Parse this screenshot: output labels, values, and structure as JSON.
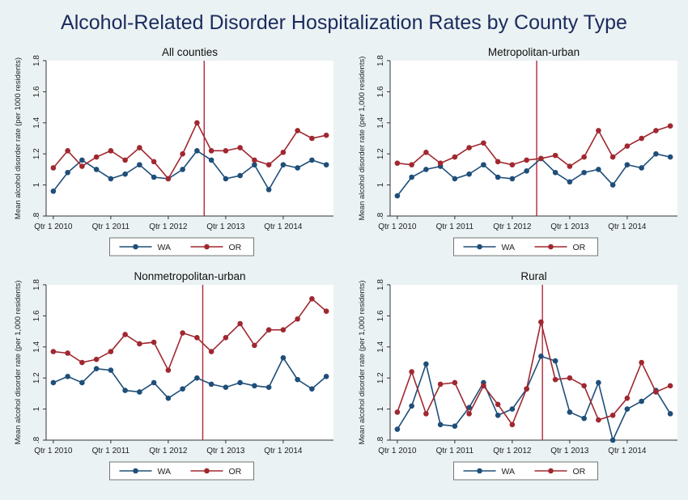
{
  "title": "Alcohol-Related Disorder Hospitalization Rates by County Type",
  "colors": {
    "WA": "#1f4e79",
    "OR": "#a02830",
    "intervention": "#b0283a",
    "background": "#eaf2f3"
  },
  "chart_data": [
    {
      "type": "line",
      "title": "All counties",
      "ylabel": "Mean alcohol disorder rate (per 1000 residents)",
      "ylim": [
        0.8,
        1.8
      ],
      "yticks": [
        0.8,
        1.0,
        1.2,
        1.4,
        1.6,
        1.8
      ],
      "ytick_labels": [
        ".8",
        "1",
        "1.2",
        "1.4",
        "1.6",
        "1.8"
      ],
      "x": [
        1,
        2,
        3,
        4,
        5,
        6,
        7,
        8,
        9,
        10,
        11,
        12,
        13,
        14,
        15,
        16,
        17,
        18,
        19,
        20
      ],
      "xticks": [
        1,
        5,
        9,
        13,
        17
      ],
      "xtick_labels": [
        "Qtr 1 2010",
        "Qtr 1 2011",
        "Qtr 1 2012",
        "Qtr 1 2013",
        "Qtr 1 2014"
      ],
      "vline": 11.5,
      "legend": "bottom-center",
      "series": [
        {
          "name": "WA",
          "values": [
            0.96,
            1.08,
            1.16,
            1.1,
            1.04,
            1.07,
            1.13,
            1.05,
            1.04,
            1.1,
            1.22,
            1.16,
            1.04,
            1.06,
            1.13,
            0.97,
            1.13,
            1.11,
            1.16,
            1.13
          ]
        },
        {
          "name": "OR",
          "values": [
            1.11,
            1.22,
            1.12,
            1.18,
            1.22,
            1.16,
            1.24,
            1.15,
            1.04,
            1.2,
            1.4,
            1.22,
            1.22,
            1.24,
            1.16,
            1.13,
            1.21,
            1.35,
            1.3,
            1.32
          ]
        }
      ]
    },
    {
      "type": "line",
      "title": "Metropolitan-urban",
      "ylabel": "Mean alcohol disorder rate (per 1,000 residents)",
      "ylim": [
        0.8,
        1.8
      ],
      "yticks": [
        0.8,
        1.0,
        1.2,
        1.4,
        1.6,
        1.8
      ],
      "ytick_labels": [
        ".8",
        "1",
        "1.2",
        "1.4",
        "1.6",
        "1.8"
      ],
      "x": [
        1,
        2,
        3,
        4,
        5,
        6,
        7,
        8,
        9,
        10,
        11,
        12,
        13,
        14,
        15,
        16,
        17,
        18,
        19,
        20
      ],
      "xticks": [
        1,
        5,
        9,
        13,
        17
      ],
      "xtick_labels": [
        "Qtr 1 2010",
        "Qtr 1 2011",
        "Qtr 1 2012",
        "Qtr 1 2013",
        "Qtr 1 2014"
      ],
      "vline": 10.7,
      "legend": "bottom-center",
      "series": [
        {
          "name": "WA",
          "values": [
            0.93,
            1.05,
            1.1,
            1.12,
            1.04,
            1.07,
            1.13,
            1.05,
            1.04,
            1.09,
            1.17,
            1.08,
            1.02,
            1.08,
            1.1,
            1.0,
            1.13,
            1.11,
            1.2,
            1.18
          ]
        },
        {
          "name": "OR",
          "values": [
            1.14,
            1.13,
            1.21,
            1.14,
            1.18,
            1.24,
            1.27,
            1.15,
            1.13,
            1.16,
            1.17,
            1.19,
            1.12,
            1.18,
            1.35,
            1.18,
            1.25,
            1.3,
            1.35,
            1.38
          ]
        }
      ]
    },
    {
      "type": "line",
      "title": "Nonmetropolitan-urban",
      "ylabel": "Mean alcohol disorder rate (per 1,000 residents)",
      "ylim": [
        0.8,
        1.8
      ],
      "yticks": [
        0.8,
        1.0,
        1.2,
        1.4,
        1.6,
        1.8
      ],
      "ytick_labels": [
        ".8",
        "1",
        "1.2",
        "1.4",
        "1.6",
        "1.8"
      ],
      "x": [
        1,
        2,
        3,
        4,
        5,
        6,
        7,
        8,
        9,
        10,
        11,
        12,
        13,
        14,
        15,
        16,
        17,
        18,
        19,
        20
      ],
      "xticks": [
        1,
        5,
        9,
        13,
        17
      ],
      "xtick_labels": [
        "Qtr 1 2010",
        "Qtr 1 2011",
        "Qtr 1 2012",
        "Qtr 1 2013",
        "Qtr 1 2014"
      ],
      "vline": 11.4,
      "legend": "bottom-center",
      "series": [
        {
          "name": "WA",
          "values": [
            1.17,
            1.21,
            1.17,
            1.26,
            1.25,
            1.12,
            1.11,
            1.17,
            1.07,
            1.13,
            1.2,
            1.16,
            1.14,
            1.17,
            1.15,
            1.14,
            1.33,
            1.19,
            1.13,
            1.21
          ]
        },
        {
          "name": "OR",
          "values": [
            1.37,
            1.36,
            1.3,
            1.32,
            1.37,
            1.48,
            1.42,
            1.43,
            1.25,
            1.49,
            1.46,
            1.37,
            1.46,
            1.55,
            1.41,
            1.51,
            1.51,
            1.58,
            1.71,
            1.63
          ]
        }
      ]
    },
    {
      "type": "line",
      "title": "Rural",
      "ylabel": "Mean alcohol disorder rate (per 1,000 residents)",
      "ylim": [
        0.8,
        1.8
      ],
      "yticks": [
        0.8,
        1.0,
        1.2,
        1.4,
        1.6,
        1.8
      ],
      "ytick_labels": [
        ".8",
        "1",
        "1.2",
        "1.4",
        "1.6",
        "1.8"
      ],
      "x": [
        1,
        2,
        3,
        4,
        5,
        6,
        7,
        8,
        9,
        10,
        11,
        12,
        13,
        14,
        15,
        16,
        17,
        18,
        19,
        20
      ],
      "xticks": [
        1,
        5,
        9,
        13,
        17
      ],
      "xtick_labels": [
        "Qtr 1 2010",
        "Qtr 1 2011",
        "Qtr 1 2012",
        "Qtr 1 2013",
        "Qtr 1 2014"
      ],
      "vline": 11.1,
      "legend": "bottom-center",
      "series": [
        {
          "name": "WA",
          "values": [
            0.87,
            1.02,
            1.29,
            0.9,
            0.89,
            1.01,
            1.17,
            0.96,
            1.0,
            1.13,
            1.34,
            1.31,
            0.98,
            0.94,
            1.17,
            0.8,
            1.0,
            1.05,
            1.12,
            0.97
          ]
        },
        {
          "name": "OR",
          "values": [
            0.98,
            1.24,
            0.97,
            1.16,
            1.17,
            0.97,
            1.15,
            1.03,
            0.9,
            1.13,
            1.56,
            1.19,
            1.2,
            1.15,
            0.93,
            0.96,
            1.07,
            1.3,
            1.11,
            1.15
          ]
        }
      ]
    }
  ]
}
